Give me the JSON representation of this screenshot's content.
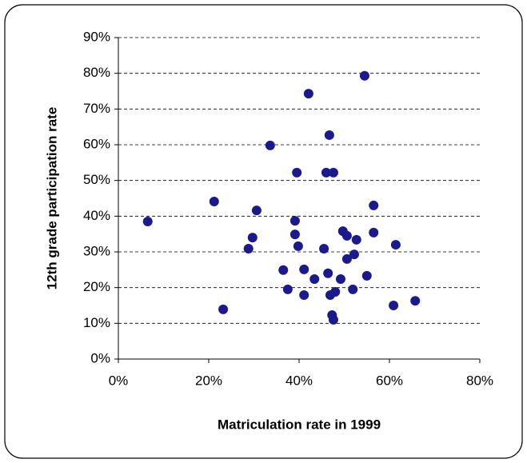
{
  "chart_data": {
    "type": "scatter",
    "x_label": "Matriculation rate in 1999",
    "y_label": "12th grade participation rate",
    "x": [
      6.5,
      21.2,
      23.2,
      28.8,
      29.7,
      30.6,
      33.6,
      36.5,
      37.5,
      39.1,
      39.1,
      39.5,
      39.8,
      41.1,
      41.1,
      42.1,
      43.4,
      45.5,
      46.0,
      46.4,
      46.7,
      46.9,
      47.3,
      47.6,
      47.6,
      48.0,
      49.2,
      49.7,
      50.6,
      50.6,
      51.9,
      52.2,
      52.7,
      54.5,
      55.0,
      56.5,
      56.5,
      61.4,
      60.9,
      65.7
    ],
    "values": [
      38.5,
      44.1,
      13.9,
      30.9,
      34.0,
      41.6,
      59.8,
      24.9,
      19.5,
      38.7,
      34.9,
      52.2,
      31.6,
      25.1,
      17.9,
      74.3,
      22.4,
      30.9,
      52.2,
      24.0,
      62.7,
      17.9,
      12.3,
      52.2,
      11.0,
      18.8,
      22.4,
      35.8,
      34.5,
      28.0,
      19.5,
      29.3,
      33.4,
      79.3,
      23.3,
      35.4,
      43.0,
      32.0,
      15.0,
      16.3
    ],
    "color": "#1a1a8c",
    "xlim": [
      0,
      80
    ],
    "xticks": [
      {
        "value": 0,
        "label": "0%"
      },
      {
        "value": 20,
        "label": "20%"
      },
      {
        "value": 40,
        "label": "40%"
      },
      {
        "value": 60,
        "label": "60%"
      },
      {
        "value": 80,
        "label": "80%"
      }
    ],
    "ylim": [
      0,
      90
    ],
    "yticks": [
      {
        "value": 0,
        "label": "0%"
      },
      {
        "value": 10,
        "label": "10%"
      },
      {
        "value": 20,
        "label": "20%"
      },
      {
        "value": 30,
        "label": "30%"
      },
      {
        "value": 40,
        "label": "40%"
      },
      {
        "value": 50,
        "label": "50%"
      },
      {
        "value": 60,
        "label": "60%"
      },
      {
        "value": 70,
        "label": "70%"
      },
      {
        "value": 80,
        "label": "80%"
      },
      {
        "value": 90,
        "label": "90%"
      }
    ],
    "grid": true
  }
}
